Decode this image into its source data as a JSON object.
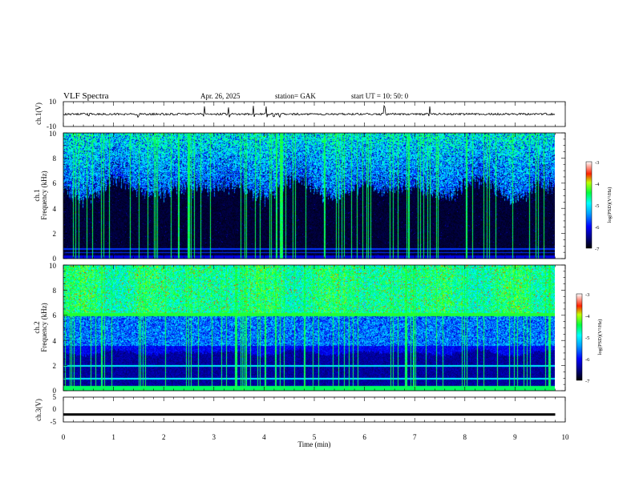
{
  "header": {
    "title": "VLF  Spectra",
    "date": "Apr. 26,  2025",
    "station": "station= GAK",
    "start": "start  UT  =    10: 50: 0"
  },
  "chart_data": [
    {
      "type": "line",
      "panel": "ch1-waveform",
      "ylabel": "ch.1(V)",
      "ylim": [
        -10,
        10
      ],
      "yticks": [
        "10",
        "-10"
      ],
      "baseline": 0,
      "spikes_min": [
        0.5,
        1.5,
        2.8,
        3.3,
        3.8,
        4.05,
        4.2,
        4.3,
        6.4,
        7.3
      ]
    },
    {
      "type": "heatmap",
      "panel": "ch1-spectrogram",
      "ylabel": "ch.1\nFrequency (kHz)",
      "ylabel_line1": "ch.1",
      "ylabel_line2": "Frequency  (kHz)",
      "ylim": [
        0,
        10
      ],
      "yticks": [
        "0",
        "2",
        "4",
        "6",
        "8",
        "10"
      ],
      "data_end_min": 9.8,
      "colorbar": {
        "label": "log(PSD)(V²/Hz)",
        "ticks": [
          "-3",
          "-4",
          "-5",
          "-6",
          "-7"
        ],
        "range": [
          -7,
          -3
        ]
      }
    },
    {
      "type": "heatmap",
      "panel": "ch2-spectrogram",
      "ylabel_line1": "ch.2",
      "ylabel_line2": "Frequency  (kHz)",
      "ylim": [
        0,
        10
      ],
      "yticks": [
        "0",
        "2",
        "4",
        "6",
        "8",
        "10"
      ],
      "data_end_min": 9.8,
      "colorbar": {
        "label": "log(PSD)(V²/Hz)",
        "ticks": [
          "-3",
          "-4",
          "-5",
          "-6",
          "-7"
        ],
        "range": [
          -7,
          -3
        ]
      }
    },
    {
      "type": "line",
      "panel": "ch3-waveform",
      "ylabel": "ch.3(V)",
      "ylim": [
        -5,
        5
      ],
      "yticks": [
        "5",
        "0",
        "-5"
      ],
      "level": -2
    }
  ],
  "xaxis": {
    "label": "Time  (min)",
    "range": [
      0,
      10
    ],
    "ticks": [
      "0",
      "1",
      "2",
      "3",
      "4",
      "5",
      "6",
      "7",
      "8",
      "9",
      "10"
    ]
  }
}
